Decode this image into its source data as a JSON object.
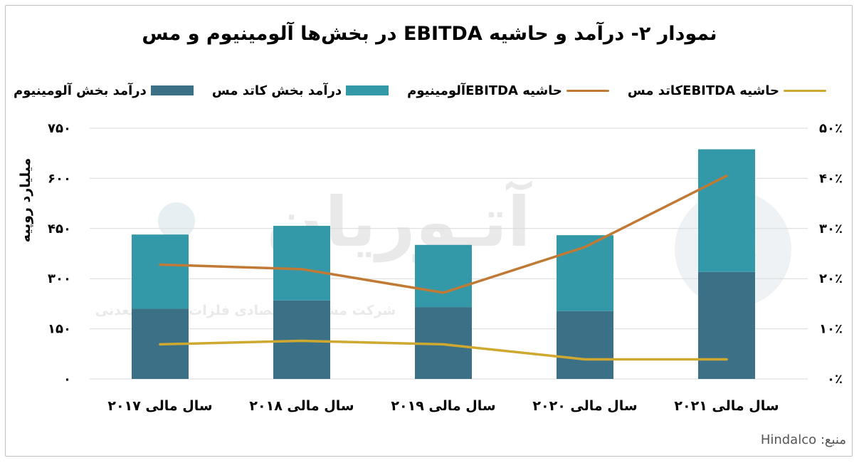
{
  "title": "نمودار ۲- درآمد و حاشیه EBITDA در بخش‌ها آلومینیوم و مس",
  "source": "منبع: Hindalco",
  "watermark": {
    "logo": "آتـوریان",
    "tagline": "شرکت مشاوره اقتصادی فلزات و مواد معدنی"
  },
  "colors": {
    "aluminium_revenue": "#3c7087",
    "copper_revenue": "#3399a8",
    "aluminium_ebitda": "#c07a35",
    "copper_ebitda": "#cfa830",
    "grid": "#d9d9d9",
    "frame": "#bfbfbf"
  },
  "chart_data": {
    "type": "bar",
    "stacked": true,
    "title": "نمودار ۲- درآمد و حاشیه EBITDA در بخش‌ها آلومینیوم و مس",
    "categories": [
      "سال مالی ۲۰۱۷",
      "سال مالی ۲۰۱۸",
      "سال مالی ۲۰۱۹",
      "سال مالی ۲۰۲۰",
      "سال مالی ۲۰۲۱"
    ],
    "ylabel": "میلیارد روپیه",
    "ylim": [
      0,
      750
    ],
    "y2lim": [
      0,
      50
    ],
    "yticks": [
      "۰",
      "۱۵۰",
      "۳۰۰",
      "۴۵۰",
      "۶۰۰",
      "۷۵۰"
    ],
    "y2ticks": [
      "۰٪",
      "۱۰٪",
      "۲۰٪",
      "۳۰٪",
      "۴۰٪",
      "۵۰٪"
    ],
    "grid": true,
    "legend_position": "top",
    "series": [
      {
        "name": "درآمد بخش آلومینیوم",
        "type": "bar",
        "axis": "left",
        "values": [
          210,
          235,
          215,
          203,
          320
        ]
      },
      {
        "name": "درآمد بخش کاتد مس",
        "type": "bar",
        "axis": "left",
        "values": [
          222,
          223,
          186,
          227,
          367
        ]
      },
      {
        "name": "حاشیه  EBITDAآلومینیوم",
        "type": "line",
        "axis": "right",
        "values": [
          22.8,
          21.9,
          17.2,
          26.3,
          40.5
        ]
      },
      {
        "name": "حاشیه  EBITDAکاتد مس",
        "type": "line",
        "axis": "right",
        "values": [
          6.9,
          7.6,
          6.9,
          3.9,
          3.9
        ]
      }
    ]
  }
}
